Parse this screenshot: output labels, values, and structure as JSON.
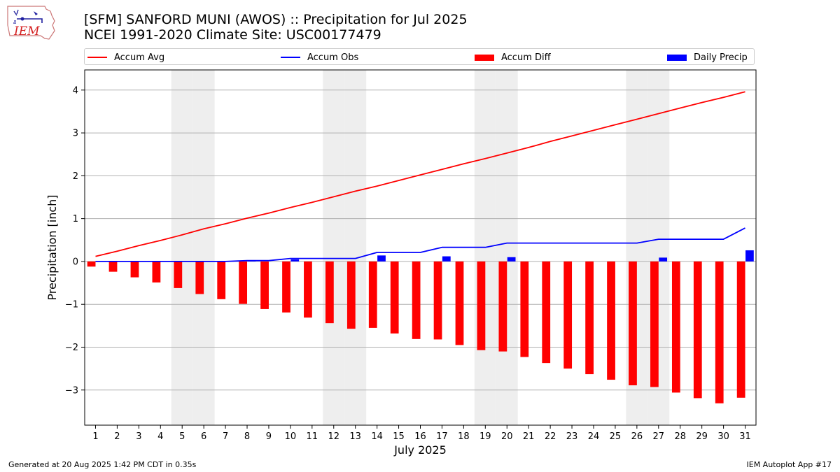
{
  "header": {
    "title_line1": "[SFM] SANFORD MUNI (AWOS) :: Precipitation for Jul 2025",
    "title_line2": "NCEI 1991-2020 Climate Site: USC00177479"
  },
  "logo": {
    "text": "IEM",
    "color": "#d42020"
  },
  "footer": {
    "left": "Generated at 20 Aug 2025 1:42 PM CDT in 0.35s",
    "right": "IEM Autoplot App #17"
  },
  "chart_data": {
    "type": "bar",
    "xlabel": "July 2025",
    "ylabel": "Precipitation [inch]",
    "ylim": [
      -3.82,
      4.47
    ],
    "yticks": [
      -3,
      -2,
      -1,
      0,
      1,
      2,
      3,
      4
    ],
    "x": [
      1,
      2,
      3,
      4,
      5,
      6,
      7,
      8,
      9,
      10,
      11,
      12,
      13,
      14,
      15,
      16,
      17,
      18,
      19,
      20,
      21,
      22,
      23,
      24,
      25,
      26,
      27,
      28,
      29,
      30,
      31
    ],
    "weekend_days": [
      5,
      6,
      12,
      13,
      19,
      20,
      26,
      27
    ],
    "grid": true,
    "legend_position": "top",
    "series": [
      {
        "name": "Accum Avg",
        "kind": "line",
        "color": "#ff0000",
        "values": [
          0.12,
          0.24,
          0.37,
          0.49,
          0.62,
          0.76,
          0.88,
          1.01,
          1.13,
          1.26,
          1.38,
          1.51,
          1.64,
          1.76,
          1.89,
          2.02,
          2.15,
          2.28,
          2.4,
          2.53,
          2.66,
          2.8,
          2.93,
          3.06,
          3.19,
          3.32,
          3.45,
          3.58,
          3.71,
          3.83,
          3.96
        ]
      },
      {
        "name": "Accum Obs",
        "kind": "line",
        "color": "#0000ff",
        "values": [
          0,
          0,
          0,
          0,
          0,
          0,
          0,
          0.02,
          0.02,
          0.07,
          0.07,
          0.07,
          0.07,
          0.21,
          0.21,
          0.21,
          0.33,
          0.33,
          0.33,
          0.43,
          0.43,
          0.43,
          0.43,
          0.43,
          0.43,
          0.43,
          0.52,
          0.52,
          0.52,
          0.52,
          0.78
        ]
      },
      {
        "name": "Accum Diff",
        "kind": "bar",
        "color": "#ff0000",
        "values": [
          -0.12,
          -0.24,
          -0.37,
          -0.49,
          -0.62,
          -0.76,
          -0.88,
          -0.99,
          -1.11,
          -1.19,
          -1.31,
          -1.44,
          -1.57,
          -1.55,
          -1.68,
          -1.81,
          -1.82,
          -1.95,
          -2.07,
          -2.1,
          -2.23,
          -2.37,
          -2.5,
          -2.63,
          -2.76,
          -2.89,
          -2.93,
          -3.06,
          -3.19,
          -3.31,
          -3.18
        ]
      },
      {
        "name": "Daily Precip",
        "kind": "bar",
        "color": "#0000ff",
        "values": [
          0,
          0,
          0,
          0,
          0,
          0,
          0,
          0.02,
          0,
          0.05,
          0,
          0,
          0,
          0.14,
          0,
          0,
          0.12,
          0,
          0,
          0.1,
          0,
          0,
          0,
          0,
          0,
          0,
          0.09,
          0,
          0,
          0,
          0.26
        ]
      }
    ]
  }
}
